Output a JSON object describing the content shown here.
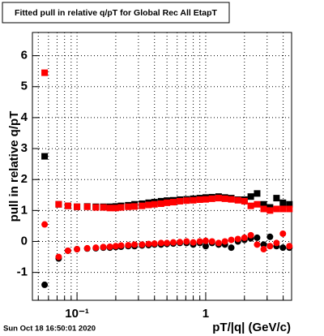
{
  "chart_data": {
    "type": "scatter",
    "title": "Fitted pull in relative q/pT for Global Rec All EtapT",
    "x_label": "pT/|q| (GeV/c)",
    "y_label": "pull in relative q/pT",
    "footer": "Sun Oct 18 16:50:01 2020",
    "log_x": true,
    "grid": true,
    "xlim": [
      0.045,
      4.65
    ],
    "ylim": [
      -1.9,
      6.75
    ],
    "xticks": [
      {
        "value": 0.1,
        "label": "10⁻¹"
      },
      1
    ],
    "xminorticks": [
      0.05,
      0.06,
      0.07,
      0.08,
      0.09,
      0.2,
      0.3,
      0.4,
      0.5,
      0.6,
      0.7,
      0.8,
      0.9,
      2,
      3,
      4
    ],
    "yticks": [
      -1,
      0,
      1,
      2,
      3,
      4,
      5,
      6
    ],
    "x": [
      0.056,
      0.072,
      0.085,
      0.1,
      0.12,
      0.14,
      0.16,
      0.18,
      0.2,
      0.22,
      0.25,
      0.28,
      0.32,
      0.36,
      0.4,
      0.45,
      0.5,
      0.56,
      0.63,
      0.71,
      0.8,
      0.9,
      1.0,
      1.12,
      1.26,
      1.41,
      1.58,
      1.78,
      2.0,
      2.24,
      2.51,
      2.82,
      3.16,
      3.55,
      3.98,
      4.47
    ],
    "series": [
      {
        "color": "#000000",
        "marker": "square",
        "values": [
          2.75,
          1.2,
          1.15,
          1.12,
          1.13,
          1.12,
          1.12,
          1.12,
          1.13,
          1.15,
          1.17,
          1.2,
          1.22,
          1.25,
          1.27,
          1.3,
          1.32,
          1.33,
          1.35,
          1.36,
          1.38,
          1.4,
          1.42,
          1.43,
          1.45,
          1.42,
          1.4,
          1.35,
          1.35,
          1.45,
          1.55,
          1.2,
          1.1,
          1.4,
          1.25,
          1.2
        ]
      },
      {
        "color": "#ff0000",
        "marker": "square",
        "values": [
          5.45,
          1.2,
          1.15,
          1.12,
          1.12,
          1.1,
          1.1,
          1.08,
          1.08,
          1.1,
          1.12,
          1.13,
          1.15,
          1.18,
          1.2,
          1.22,
          1.25,
          1.27,
          1.3,
          1.32,
          1.33,
          1.35,
          1.36,
          1.38,
          1.4,
          1.38,
          1.36,
          1.33,
          1.3,
          1.15,
          1.2,
          1.05,
          1.0,
          1.05,
          1.05,
          1.05
        ]
      },
      {
        "color": "#000000",
        "marker": "circle",
        "values": [
          -1.4,
          -0.55,
          -0.3,
          -0.25,
          -0.23,
          -0.22,
          -0.2,
          -0.2,
          -0.18,
          -0.17,
          -0.15,
          -0.15,
          -0.13,
          -0.12,
          -0.1,
          -0.1,
          -0.08,
          -0.07,
          -0.05,
          -0.05,
          -0.1,
          -0.05,
          -0.15,
          -0.05,
          -0.1,
          -0.1,
          -0.2,
          0.0,
          0.05,
          0.1,
          0.12,
          -0.1,
          0.15,
          -0.15,
          -0.2,
          -0.2
        ]
      },
      {
        "color": "#ff0000",
        "marker": "circle",
        "values": [
          0.55,
          -0.5,
          -0.3,
          -0.25,
          -0.22,
          -0.2,
          -0.18,
          -0.17,
          -0.15,
          -0.13,
          -0.12,
          -0.1,
          -0.1,
          -0.08,
          -0.07,
          -0.05,
          -0.05,
          -0.03,
          -0.02,
          0.0,
          -0.03,
          0.0,
          0.02,
          0.0,
          -0.05,
          0.0,
          0.05,
          0.08,
          0.12,
          0.2,
          -0.1,
          -0.25,
          -0.15,
          -0.05,
          0.25,
          -0.15
        ]
      }
    ]
  }
}
